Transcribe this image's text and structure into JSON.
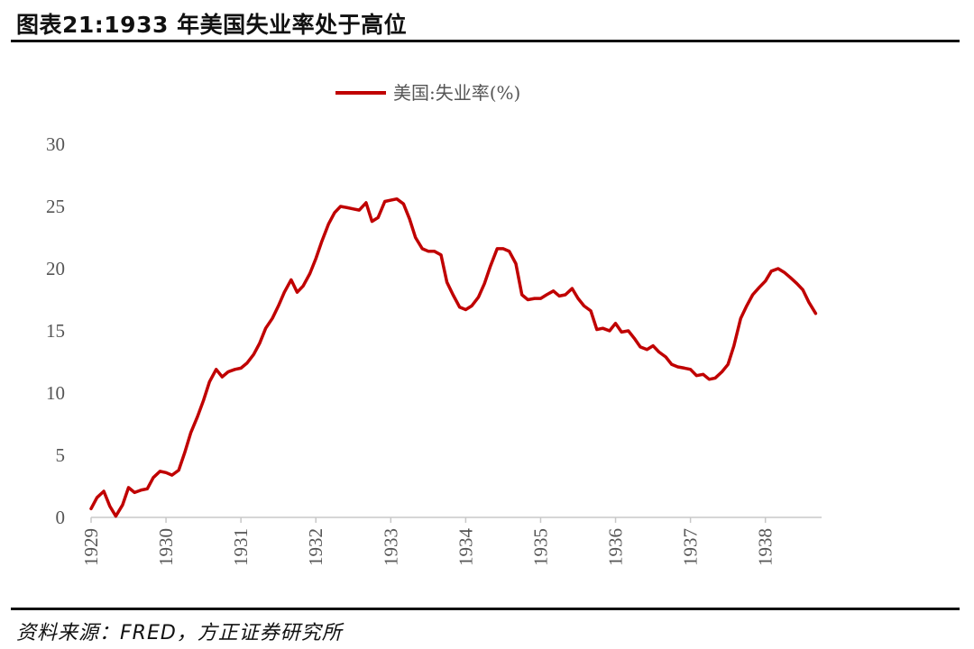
{
  "figure": {
    "title": "图表21:1933 年美国失业率处于高位",
    "source": "资料来源：FRED，方正证券研究所"
  },
  "chart_data": {
    "type": "line",
    "xlabel": "",
    "ylabel": "",
    "x_ticks": [
      "1929",
      "1930",
      "1931",
      "1932",
      "1933",
      "1934",
      "1935",
      "1936",
      "1937",
      "1938"
    ],
    "y_ticks": [
      "0",
      "5",
      "10",
      "15",
      "20",
      "25",
      "30"
    ],
    "ylim": [
      0,
      30
    ],
    "xlim": [
      1929.0,
      1938.75
    ],
    "legend_position": "top-center",
    "grid": false,
    "series": [
      {
        "name": "美国:失业率(%)",
        "color": "#C00000",
        "points": [
          [
            1929.0,
            0.7
          ],
          [
            1929.08,
            1.6
          ],
          [
            1929.17,
            2.1
          ],
          [
            1929.25,
            0.9
          ],
          [
            1929.33,
            0.1
          ],
          [
            1929.42,
            1.0
          ],
          [
            1929.5,
            2.4
          ],
          [
            1929.58,
            2.0
          ],
          [
            1929.67,
            2.2
          ],
          [
            1929.75,
            2.3
          ],
          [
            1929.83,
            3.2
          ],
          [
            1929.92,
            3.7
          ],
          [
            1930.0,
            3.6
          ],
          [
            1930.08,
            3.4
          ],
          [
            1930.17,
            3.8
          ],
          [
            1930.25,
            5.2
          ],
          [
            1930.33,
            6.8
          ],
          [
            1930.42,
            8.1
          ],
          [
            1930.5,
            9.4
          ],
          [
            1930.58,
            10.9
          ],
          [
            1930.67,
            11.9
          ],
          [
            1930.75,
            11.3
          ],
          [
            1930.83,
            11.7
          ],
          [
            1930.92,
            11.9
          ],
          [
            1931.0,
            12.0
          ],
          [
            1931.08,
            12.4
          ],
          [
            1931.17,
            13.1
          ],
          [
            1931.25,
            14.0
          ],
          [
            1931.33,
            15.2
          ],
          [
            1931.42,
            16.0
          ],
          [
            1931.5,
            17.0
          ],
          [
            1931.58,
            18.1
          ],
          [
            1931.67,
            19.1
          ],
          [
            1931.75,
            18.1
          ],
          [
            1931.83,
            18.6
          ],
          [
            1931.92,
            19.6
          ],
          [
            1932.0,
            20.8
          ],
          [
            1932.08,
            22.2
          ],
          [
            1932.17,
            23.6
          ],
          [
            1932.25,
            24.5
          ],
          [
            1932.33,
            25.0
          ],
          [
            1932.42,
            24.9
          ],
          [
            1932.5,
            24.8
          ],
          [
            1932.58,
            24.7
          ],
          [
            1932.67,
            25.3
          ],
          [
            1932.75,
            23.8
          ],
          [
            1932.83,
            24.1
          ],
          [
            1932.92,
            25.4
          ],
          [
            1933.0,
            25.5
          ],
          [
            1933.08,
            25.6
          ],
          [
            1933.17,
            25.2
          ],
          [
            1933.25,
            24.0
          ],
          [
            1933.33,
            22.5
          ],
          [
            1933.42,
            21.6
          ],
          [
            1933.5,
            21.4
          ],
          [
            1933.58,
            21.4
          ],
          [
            1933.67,
            21.1
          ],
          [
            1933.75,
            18.9
          ],
          [
            1933.83,
            17.9
          ],
          [
            1933.92,
            16.9
          ],
          [
            1934.0,
            16.7
          ],
          [
            1934.08,
            17.0
          ],
          [
            1934.17,
            17.7
          ],
          [
            1934.25,
            18.8
          ],
          [
            1934.33,
            20.2
          ],
          [
            1934.42,
            21.6
          ],
          [
            1934.5,
            21.6
          ],
          [
            1934.58,
            21.4
          ],
          [
            1934.67,
            20.4
          ],
          [
            1934.75,
            17.9
          ],
          [
            1934.83,
            17.5
          ],
          [
            1934.92,
            17.6
          ],
          [
            1935.0,
            17.6
          ],
          [
            1935.08,
            17.9
          ],
          [
            1935.17,
            18.2
          ],
          [
            1935.25,
            17.8
          ],
          [
            1935.33,
            17.9
          ],
          [
            1935.42,
            18.4
          ],
          [
            1935.5,
            17.6
          ],
          [
            1935.58,
            17.0
          ],
          [
            1935.67,
            16.6
          ],
          [
            1935.75,
            15.1
          ],
          [
            1935.83,
            15.2
          ],
          [
            1935.92,
            15.0
          ],
          [
            1936.0,
            15.6
          ],
          [
            1936.08,
            14.9
          ],
          [
            1936.17,
            15.0
          ],
          [
            1936.25,
            14.4
          ],
          [
            1936.33,
            13.7
          ],
          [
            1936.42,
            13.5
          ],
          [
            1936.5,
            13.8
          ],
          [
            1936.58,
            13.3
          ],
          [
            1936.67,
            12.9
          ],
          [
            1936.75,
            12.3
          ],
          [
            1936.83,
            12.1
          ],
          [
            1936.92,
            12.0
          ],
          [
            1937.0,
            11.9
          ],
          [
            1937.08,
            11.4
          ],
          [
            1937.17,
            11.5
          ],
          [
            1937.25,
            11.1
          ],
          [
            1937.33,
            11.2
          ],
          [
            1937.42,
            11.7
          ],
          [
            1937.5,
            12.3
          ],
          [
            1937.58,
            13.8
          ],
          [
            1937.67,
            16.0
          ],
          [
            1937.75,
            17.0
          ],
          [
            1937.83,
            17.9
          ],
          [
            1937.92,
            18.5
          ],
          [
            1938.0,
            19.0
          ],
          [
            1938.08,
            19.8
          ],
          [
            1938.17,
            20.0
          ],
          [
            1938.25,
            19.7
          ],
          [
            1938.33,
            19.3
          ],
          [
            1938.42,
            18.8
          ],
          [
            1938.5,
            18.3
          ],
          [
            1938.58,
            17.3
          ],
          [
            1938.67,
            16.4
          ]
        ]
      }
    ]
  }
}
